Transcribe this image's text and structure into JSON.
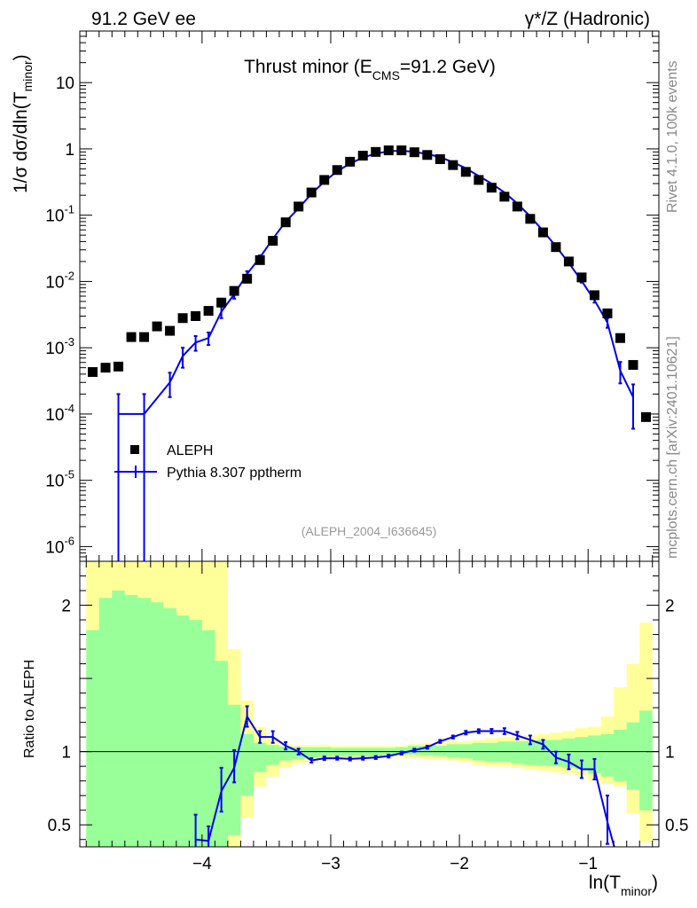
{
  "header": {
    "left": "91.2 GeV ee",
    "right": "γ*/Z (Hadronic)",
    "side_top": "Rivet 4.1.0,  100k events",
    "side_bottom": "mcplots.cern.ch [arXiv:2401.10621]"
  },
  "chart_data": [
    {
      "type": "scatter",
      "title": "Thrust minor (E_CMS=91.2 GeV)",
      "title_main": "Thrust minor (E",
      "title_sub": "CMS",
      "title_tail": "=91.2 GeV)",
      "ylabel": "1/σ  dσ/dln(T_minor)",
      "ylabel_main": "1/σ  dσ/dln(T",
      "ylabel_sub": "minor",
      "ylabel_tail": ")",
      "yscale": "log",
      "ylim": [
        6e-07,
        60
      ],
      "xlim": [
        -4.95,
        -0.45
      ],
      "ytick_labels": [
        {
          "base": "10",
          "exp": "-6"
        },
        {
          "base": "10",
          "exp": "-5"
        },
        {
          "base": "10",
          "exp": "-4"
        },
        {
          "base": "10",
          "exp": "-3"
        },
        {
          "base": "10",
          "exp": "-2"
        },
        {
          "base": "10",
          "exp": "-1"
        },
        {
          "base": "1",
          "exp": ""
        },
        {
          "base": "10",
          "exp": ""
        }
      ],
      "ytick_values": [
        1e-06,
        1e-05,
        0.0001,
        0.001,
        0.01,
        0.1,
        1,
        10
      ],
      "annotation": "(ALEPH_2004_I636645)",
      "legend": [
        {
          "label": "ALEPH",
          "marker": "square",
          "color": "#000000"
        },
        {
          "label": "Pythia 8.307 pptherm",
          "marker": "line",
          "color": "#0000ee"
        }
      ],
      "series": [
        {
          "name": "ALEPH",
          "x": [
            -4.85,
            -4.75,
            -4.65,
            -4.55,
            -4.45,
            -4.35,
            -4.25,
            -4.15,
            -4.05,
            -3.95,
            -3.85,
            -3.75,
            -3.65,
            -3.55,
            -3.45,
            -3.35,
            -3.25,
            -3.15,
            -3.05,
            -2.95,
            -2.85,
            -2.75,
            -2.65,
            -2.55,
            -2.45,
            -2.35,
            -2.25,
            -2.15,
            -2.05,
            -1.95,
            -1.85,
            -1.75,
            -1.65,
            -1.55,
            -1.45,
            -1.35,
            -1.25,
            -1.15,
            -1.05,
            -0.95,
            -0.85,
            -0.75,
            -0.65,
            -0.55
          ],
          "y": [
            0.00043,
            0.0005,
            0.00052,
            0.00145,
            0.00145,
            0.0021,
            0.0018,
            0.0028,
            0.003,
            0.0036,
            0.0048,
            0.0072,
            0.011,
            0.021,
            0.041,
            0.078,
            0.135,
            0.22,
            0.34,
            0.48,
            0.64,
            0.79,
            0.9,
            0.95,
            0.95,
            0.89,
            0.81,
            0.7,
            0.57,
            0.45,
            0.34,
            0.26,
            0.19,
            0.135,
            0.088,
            0.055,
            0.033,
            0.02,
            0.0115,
            0.0062,
            0.0033,
            0.0014,
            0.00055,
            9e-05
          ]
        },
        {
          "name": "Pythia 8.307 pptherm",
          "x": [
            -4.65,
            -4.45,
            -4.25,
            -4.15,
            -4.05,
            -3.95,
            -3.85,
            -3.75,
            -3.65,
            -3.55,
            -3.45,
            -3.35,
            -3.25,
            -3.15,
            -3.05,
            -2.95,
            -2.85,
            -2.75,
            -2.65,
            -2.55,
            -2.45,
            -2.35,
            -2.25,
            -2.15,
            -2.05,
            -1.95,
            -1.85,
            -1.75,
            -1.65,
            -1.55,
            -1.45,
            -1.35,
            -1.25,
            -1.15,
            -1.05,
            -0.95,
            -0.85,
            -0.75,
            -0.65
          ],
          "y": [
            0.0001,
            0.0001,
            0.0003,
            0.00075,
            0.0012,
            0.0014,
            0.0035,
            0.0064,
            0.013,
            0.023,
            0.044,
            0.08,
            0.127,
            0.21,
            0.32,
            0.46,
            0.6,
            0.74,
            0.85,
            0.92,
            0.94,
            0.9,
            0.84,
            0.75,
            0.63,
            0.51,
            0.39,
            0.3,
            0.22,
            0.15,
            0.096,
            0.058,
            0.034,
            0.019,
            0.0102,
            0.0052,
            0.0024,
            0.00045,
            0.00018
          ],
          "yerr_low": [
            0.0001,
            0.0001,
            0.00012,
            0.00025,
            0.0003,
            0.0003,
            0.0007,
            0.0009,
            0.0013,
            0.0018,
            0.003,
            0.004,
            0.005,
            0.006,
            0.007,
            0.008,
            0.009,
            0.01,
            0.01,
            0.01,
            0.01,
            0.01,
            0.01,
            0.009,
            0.008,
            0.007,
            0.006,
            0.005,
            0.004,
            0.003,
            0.0025,
            0.0018,
            0.0012,
            0.0009,
            0.0006,
            0.0004,
            0.0004,
            0.00016,
            0.00012
          ],
          "yerr_high": [
            0.0001,
            0.0001,
            0.00012,
            0.00025,
            0.0003,
            0.0003,
            0.0007,
            0.0009,
            0.0013,
            0.0018,
            0.003,
            0.004,
            0.005,
            0.006,
            0.007,
            0.008,
            0.009,
            0.01,
            0.01,
            0.01,
            0.01,
            0.01,
            0.01,
            0.009,
            0.008,
            0.007,
            0.006,
            0.005,
            0.004,
            0.003,
            0.0025,
            0.0018,
            0.0012,
            0.0009,
            0.0006,
            0.0004,
            0.0004,
            0.00016,
            0.0001
          ]
        }
      ]
    },
    {
      "type": "line",
      "ylabel": "Ratio to ALEPH",
      "xlabel": "ln(T_minor)",
      "xlabel_main": "ln(T",
      "xlabel_sub": "minor",
      "xlabel_tail": ")",
      "ylim": [
        0.35,
        2.3
      ],
      "xlim": [
        -4.95,
        -0.45
      ],
      "xtick_values": [
        -4,
        -3,
        -2,
        -1
      ],
      "xtick_labels": [
        "−4",
        "−3",
        "−2",
        "−1"
      ],
      "ytick_values": [
        0.5,
        1,
        2
      ],
      "ytick_labels": [
        "0.5",
        "1",
        "2"
      ],
      "reference_line": 1,
      "bands": {
        "edges": [
          -4.9,
          -4.8,
          -4.7,
          -4.6,
          -4.5,
          -4.4,
          -4.3,
          -4.2,
          -4.1,
          -4.0,
          -3.9,
          -3.8,
          -3.7,
          -3.6,
          -3.5,
          -3.4,
          -3.3,
          -3.2,
          -3.1,
          -3.0,
          -2.9,
          -2.8,
          -2.7,
          -2.6,
          -2.5,
          -2.4,
          -2.3,
          -2.2,
          -2.1,
          -2.0,
          -1.9,
          -1.8,
          -1.7,
          -1.6,
          -1.5,
          -1.4,
          -1.3,
          -1.2,
          -1.1,
          -1.0,
          -0.9,
          -0.8,
          -0.7,
          -0.6,
          -0.5
        ],
        "yellow_low": [
          0.35,
          0.35,
          0.35,
          0.35,
          0.35,
          0.35,
          0.35,
          0.35,
          0.35,
          0.35,
          0.35,
          0.35,
          0.55,
          0.76,
          0.83,
          0.89,
          0.92,
          0.93,
          0.94,
          0.95,
          0.95,
          0.955,
          0.955,
          0.96,
          0.96,
          0.96,
          0.95,
          0.95,
          0.94,
          0.93,
          0.91,
          0.9,
          0.9,
          0.89,
          0.88,
          0.87,
          0.86,
          0.85,
          0.84,
          0.8,
          0.78,
          0.76,
          0.58,
          0.38
        ],
        "yellow_high": [
          2.3,
          2.3,
          2.3,
          2.3,
          2.3,
          2.3,
          2.3,
          2.3,
          2.3,
          2.3,
          2.3,
          1.7,
          1.35,
          1.17,
          1.09,
          1.05,
          1.045,
          1.045,
          1.045,
          1.04,
          1.04,
          1.04,
          1.04,
          1.04,
          1.04,
          1.05,
          1.06,
          1.06,
          1.07,
          1.07,
          1.08,
          1.09,
          1.1,
          1.1,
          1.11,
          1.12,
          1.13,
          1.14,
          1.16,
          1.17,
          1.24,
          1.44,
          1.6,
          1.88
        ],
        "green_low": [
          0.35,
          0.35,
          0.35,
          0.35,
          0.35,
          0.35,
          0.35,
          0.35,
          0.35,
          0.35,
          0.35,
          0.43,
          0.7,
          0.86,
          0.91,
          0.94,
          0.95,
          0.96,
          0.965,
          0.97,
          0.97,
          0.97,
          0.97,
          0.98,
          0.98,
          0.98,
          0.975,
          0.97,
          0.96,
          0.955,
          0.94,
          0.93,
          0.93,
          0.92,
          0.91,
          0.905,
          0.9,
          0.89,
          0.88,
          0.85,
          0.83,
          0.8,
          0.74,
          0.6
        ],
        "green_high": [
          1.83,
          2.05,
          2.1,
          2.07,
          2.05,
          2.02,
          1.98,
          1.93,
          1.9,
          1.83,
          1.62,
          1.32,
          1.12,
          1.06,
          1.045,
          1.035,
          1.03,
          1.03,
          1.03,
          1.025,
          1.025,
          1.025,
          1.025,
          1.025,
          1.03,
          1.04,
          1.04,
          1.04,
          1.05,
          1.05,
          1.06,
          1.06,
          1.07,
          1.07,
          1.07,
          1.08,
          1.08,
          1.09,
          1.1,
          1.11,
          1.12,
          1.15,
          1.2,
          1.28
        ]
      },
      "series": [
        {
          "name": "Pythia 8.307 pptherm / ALEPH",
          "x": [
            -4.05,
            -3.95,
            -3.85,
            -3.75,
            -3.65,
            -3.55,
            -3.45,
            -3.35,
            -3.25,
            -3.15,
            -3.05,
            -2.95,
            -2.85,
            -2.75,
            -2.65,
            -2.55,
            -2.45,
            -2.35,
            -2.25,
            -2.15,
            -2.05,
            -1.95,
            -1.85,
            -1.75,
            -1.65,
            -1.55,
            -1.45,
            -1.35,
            -1.25,
            -1.15,
            -1.05,
            -0.95,
            -0.85,
            -0.75
          ],
          "y": [
            0.4,
            0.39,
            0.73,
            0.89,
            1.24,
            1.1,
            1.1,
            1.04,
            1.0,
            0.94,
            0.955,
            0.955,
            0.95,
            0.955,
            0.96,
            0.97,
            0.99,
            1.01,
            1.03,
            1.07,
            1.1,
            1.13,
            1.14,
            1.14,
            1.14,
            1.11,
            1.08,
            1.05,
            0.96,
            0.93,
            0.88,
            0.88,
            0.52,
            0.2
          ],
          "yerr_low": [
            0.06,
            0.06,
            0.14,
            0.1,
            0.07,
            0.04,
            0.04,
            0.025,
            0.02,
            0.015,
            0.012,
            0.01,
            0.01,
            0.01,
            0.01,
            0.01,
            0.01,
            0.01,
            0.01,
            0.01,
            0.01,
            0.012,
            0.013,
            0.015,
            0.02,
            0.025,
            0.03,
            0.03,
            0.04,
            0.05,
            0.06,
            0.07,
            0.15,
            0.1
          ],
          "yerr_high": [
            0.17,
            0.1,
            0.16,
            0.12,
            0.07,
            0.04,
            0.04,
            0.025,
            0.02,
            0.015,
            0.012,
            0.01,
            0.01,
            0.01,
            0.01,
            0.01,
            0.01,
            0.01,
            0.01,
            0.01,
            0.01,
            0.012,
            0.013,
            0.015,
            0.02,
            0.025,
            0.03,
            0.03,
            0.04,
            0.05,
            0.06,
            0.07,
            0.18,
            0.1
          ]
        }
      ]
    }
  ],
  "colors": {
    "data": "#000000",
    "mc": "#0000ee",
    "band_green": "#99ff99",
    "band_yellow": "#ffff99",
    "side_text": "#888888",
    "annotation": "#999999"
  }
}
